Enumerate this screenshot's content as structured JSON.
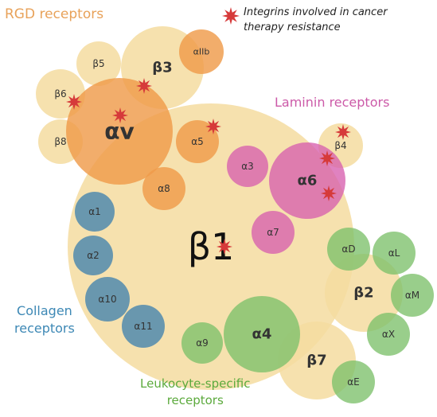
{
  "groups": {
    "rgd": "RGD receptors",
    "laminin": "Laminin receptors",
    "collagen": [
      "Collagen",
      "receptors"
    ],
    "leukocyte": [
      "Leukocyte-specific",
      "receptors"
    ]
  },
  "legend": {
    "line1": "Integrins involved in cancer",
    "line2": "therapy resistance",
    "star_color": "#d63a3a"
  },
  "colors": {
    "beta": "#f5dca0",
    "rgd": "#ef9b4b",
    "laminin": "#d75fae",
    "collagen": "#5a8fae",
    "leukocyte": "#7cc06a"
  },
  "integrins": [
    {
      "id": "beta1",
      "label": "β1",
      "group": "beta"
    },
    {
      "id": "beta3",
      "label": "β3",
      "group": "beta"
    },
    {
      "id": "beta5",
      "label": "β5",
      "group": "beta"
    },
    {
      "id": "beta6",
      "label": "β6",
      "group": "beta"
    },
    {
      "id": "beta8",
      "label": "β8",
      "group": "beta"
    },
    {
      "id": "beta4",
      "label": "β4",
      "group": "beta"
    },
    {
      "id": "beta2",
      "label": "β2",
      "group": "beta"
    },
    {
      "id": "beta7",
      "label": "β7",
      "group": "beta"
    },
    {
      "id": "alphav",
      "label": "αv",
      "group": "rgd"
    },
    {
      "id": "alphaIIb",
      "label": "αIIb",
      "group": "rgd"
    },
    {
      "id": "alpha5",
      "label": "α5",
      "group": "rgd"
    },
    {
      "id": "alpha8",
      "label": "α8",
      "group": "rgd"
    },
    {
      "id": "alpha3",
      "label": "α3",
      "group": "laminin"
    },
    {
      "id": "alpha6",
      "label": "α6",
      "group": "laminin"
    },
    {
      "id": "alpha7",
      "label": "α7",
      "group": "laminin"
    },
    {
      "id": "alpha1",
      "label": "α1",
      "group": "collagen"
    },
    {
      "id": "alpha2",
      "label": "α2",
      "group": "collagen"
    },
    {
      "id": "alpha10",
      "label": "α10",
      "group": "collagen"
    },
    {
      "id": "alpha11",
      "label": "α11",
      "group": "collagen"
    },
    {
      "id": "alpha9",
      "label": "α9",
      "group": "leukocyte"
    },
    {
      "id": "alpha4",
      "label": "α4",
      "group": "leukocyte"
    },
    {
      "id": "alphaD",
      "label": "αD",
      "group": "leukocyte"
    },
    {
      "id": "alphaL",
      "label": "αL",
      "group": "leukocyte"
    },
    {
      "id": "alphaM",
      "label": "αM",
      "group": "leukocyte"
    },
    {
      "id": "alphaX",
      "label": "αX",
      "group": "leukocyte"
    },
    {
      "id": "alphaE",
      "label": "αE",
      "group": "leukocyte"
    }
  ],
  "resistance_marked": [
    "alphav",
    "beta3",
    "beta6",
    "alpha5",
    "alpha6",
    "beta4",
    "beta1"
  ]
}
